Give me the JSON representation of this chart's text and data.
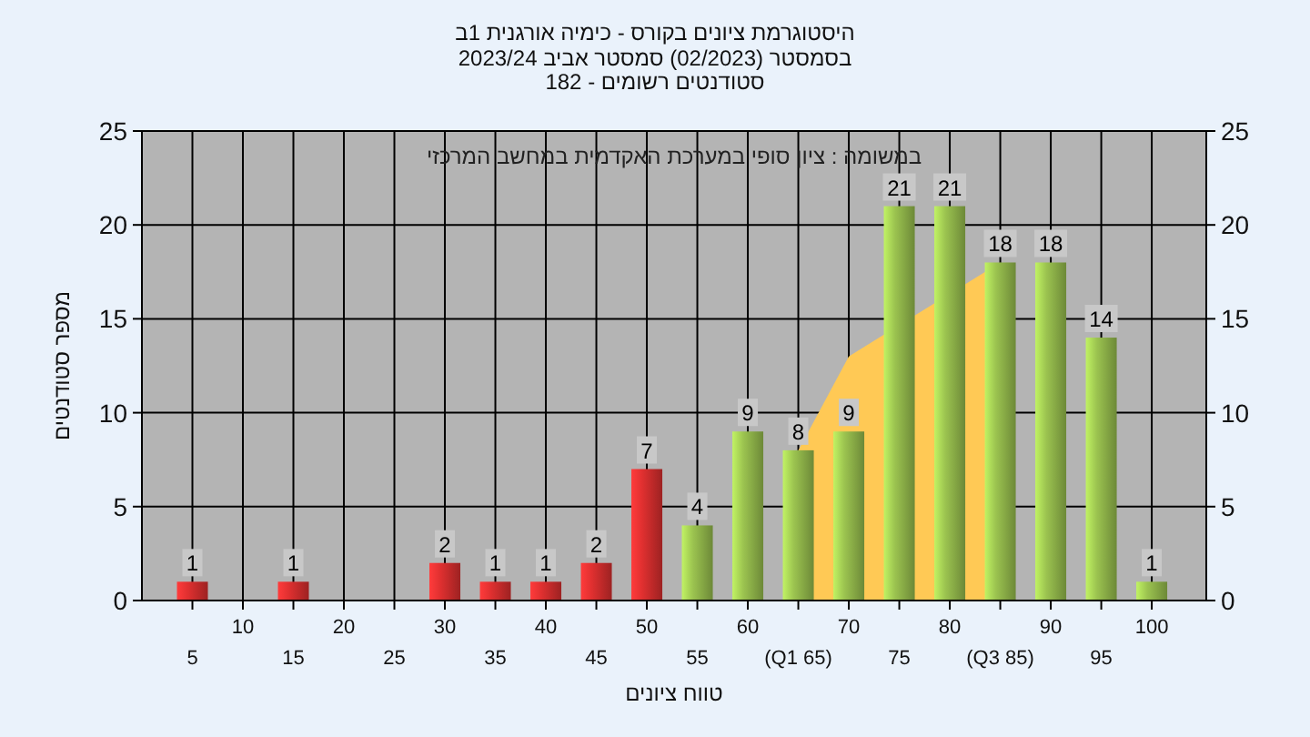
{
  "chart_data": {
    "type": "bar",
    "title": "היסטוגרמת ציונים בקורס - כימיה אורגנית 1ב",
    "subtitle": "בסמסטר  (02/2023)  סמסטר אביב 2023/24\nסטודנטים רשומים - 182",
    "xlabel": "טווח ציונים",
    "ylabel": "מספר סטודנטים",
    "annotations": [
      "במשומה : ציון סופי במערכת האקדמית במחשב המרכזי"
    ],
    "categories": [
      "5",
      "10",
      "15",
      "20",
      "25",
      "30",
      "35",
      "40",
      "45",
      "50",
      "55",
      "60",
      "(Q1 65)",
      "70",
      "75",
      "80",
      "(Q3 85)",
      "90",
      "95",
      "100"
    ],
    "series": [
      {
        "type": "area",
        "color": "#ffc955",
        "values": [
          null,
          null,
          null,
          null,
          null,
          null,
          null,
          null,
          null,
          null,
          null,
          null,
          8,
          13,
          null,
          null,
          18,
          null,
          null,
          null
        ]
      },
      {
        "colors": [
          "#e03030",
          "#e03030",
          "#e03030",
          "#e03030",
          "#e03030",
          "#e03030",
          "#e03030",
          "#e03030",
          "#e03030",
          "#e03030",
          "#9cc450",
          "#9cc450",
          "#9cc450",
          "#9cc450",
          "#9cc450",
          "#9cc450",
          "#9cc450",
          "#9cc450",
          "#9cc450",
          "#9cc450"
        ],
        "values": [
          1,
          0,
          1,
          0,
          0,
          2,
          1,
          1,
          2,
          7,
          4,
          9,
          8,
          9,
          21,
          21,
          18,
          18,
          14,
          1
        ],
        "value_labels": [
          "1",
          null,
          "1",
          null,
          null,
          "2",
          "1",
          "1",
          "2",
          "7",
          "4",
          "9",
          "8",
          "9",
          "21",
          "21",
          "18",
          "18",
          "14",
          "1"
        ]
      }
    ],
    "ylim": [
      0,
      25
    ],
    "yticks": [
      0,
      5,
      10,
      15,
      20,
      25
    ],
    "y2lim": [
      0,
      25
    ],
    "y2ticks": [
      0,
      5,
      10,
      15,
      20,
      25
    ],
    "grid": true
  }
}
